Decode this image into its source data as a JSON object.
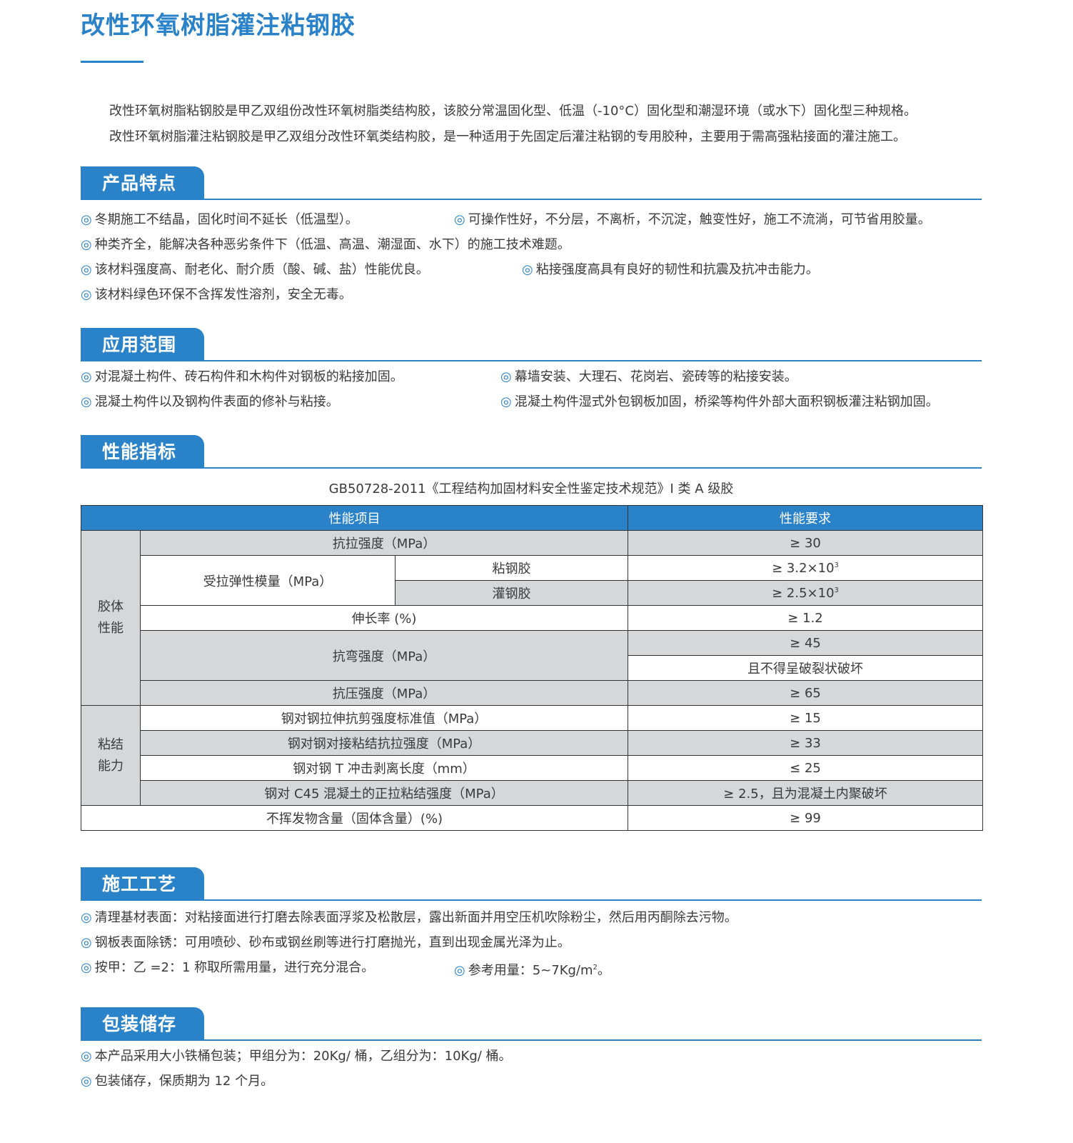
{
  "title": "改性环氧树脂灌注粘钢胶",
  "intro": [
    "改性环氧树脂粘钢胶是甲乙双组份改性环氧树脂类结构胶，该胶分常温固化型、低温（-10°C）固化型和潮湿环境（或水下）固化型三种规格。",
    "改性环氧树脂灌注粘钢胶是甲乙双组分改性环氧类结构胶，是一种适用于先固定后灌注粘钢的专用胶种，主要用于需高强粘接面的灌注施工。"
  ],
  "bullet": "◎",
  "accent": "#2a82c9",
  "features": {
    "heading": "产品特点",
    "items": [
      "冬期施工不结晶，固化时间不延长（低温型）。",
      "可操作性好，不分层，不离析，不沉淀，触变性好，施工不流淌，可节省用胶量。",
      "种类齐全，能解决各种恶劣条件下（低温、高温、潮湿面、水下）的施工技术难题。",
      "该材料强度高、耐老化、耐介质（酸、碱、盐）性能优良。",
      "粘接强度高具有良好的韧性和抗震及抗冲击能力。",
      "该材料绿色环保不含挥发性溶剂，安全无毒。"
    ]
  },
  "application": {
    "heading": "应用范围",
    "items": [
      "对混凝土构件、砖石构件和木构件对钢板的粘接加固。",
      "幕墙安装、大理石、花岗岩、瓷砖等的粘接安装。",
      "混凝土构件以及钢构件表面的修补与粘接。",
      "混凝土构件湿式外包钢板加固，桥梁等构件外部大面积钢板灌注粘钢加固。"
    ]
  },
  "performance": {
    "heading": "性能指标",
    "standard": "GB50728-2011《工程结构加固材料安全性鉴定技术规范》I 类 A 级胶",
    "table": {
      "col_item": "性能项目",
      "col_req": "性能要求",
      "group1": "胶体性能",
      "group2": "粘结能力",
      "tensile": "抗拉强度（MPa）",
      "tensile_req": "≥ 30",
      "modulus": "受拉弹性模量（MPa）",
      "modulus_a": "粘钢胶",
      "modulus_a_req": "≥ 3.2×10",
      "modulus_b": "灌钢胶",
      "modulus_b_req": "≥ 2.5×10",
      "exp": "3",
      "elong": "伸长率 (%)",
      "elong_req": "≥ 1.2",
      "bend": "抗弯强度（MPa）",
      "bend_req1": "≥ 45",
      "bend_req2": "且不得呈破裂状破坏",
      "comp": "抗压强度（MPa）",
      "comp_req": "≥ 65",
      "shear": "钢对钢拉伸抗剪强度标准值（MPa）",
      "shear_req": "≥ 15",
      "butt": "钢对钢对接粘结抗拉强度（MPa）",
      "butt_req": "≥ 33",
      "peel": "钢对钢 T 冲击剥离长度（mm）",
      "peel_req": "≤ 25",
      "c45": "钢对 C45 混凝土的正拉粘结强度（MPa）",
      "c45_req": "≥ 2.5，且为混凝土内聚破坏",
      "solid": "不挥发物含量（固体含量）(%)",
      "solid_req": "≥ 99"
    }
  },
  "construction": {
    "heading": "施工工艺",
    "items": [
      "清理基材表面：对粘接面进行打磨去除表面浮浆及松散层，露出新面并用空压机吹除粉尘，然后用丙酮除去污物。",
      "钢板表面除锈：可用喷砂、砂布或钢丝刷等进行打磨抛光，直到出现金属光泽为止。",
      "按甲：乙 =2：1 称取所需用量，进行充分混合。",
      "参考用量：5~7Kg/m",
      "。"
    ],
    "sup": "2"
  },
  "packaging": {
    "heading": "包装储存",
    "items": [
      "本产品采用大小铁桶包装；甲组分为：20Kg/ 桶，乙组分为：10Kg/ 桶。",
      "包装储存，保质期为 12 个月。"
    ]
  }
}
